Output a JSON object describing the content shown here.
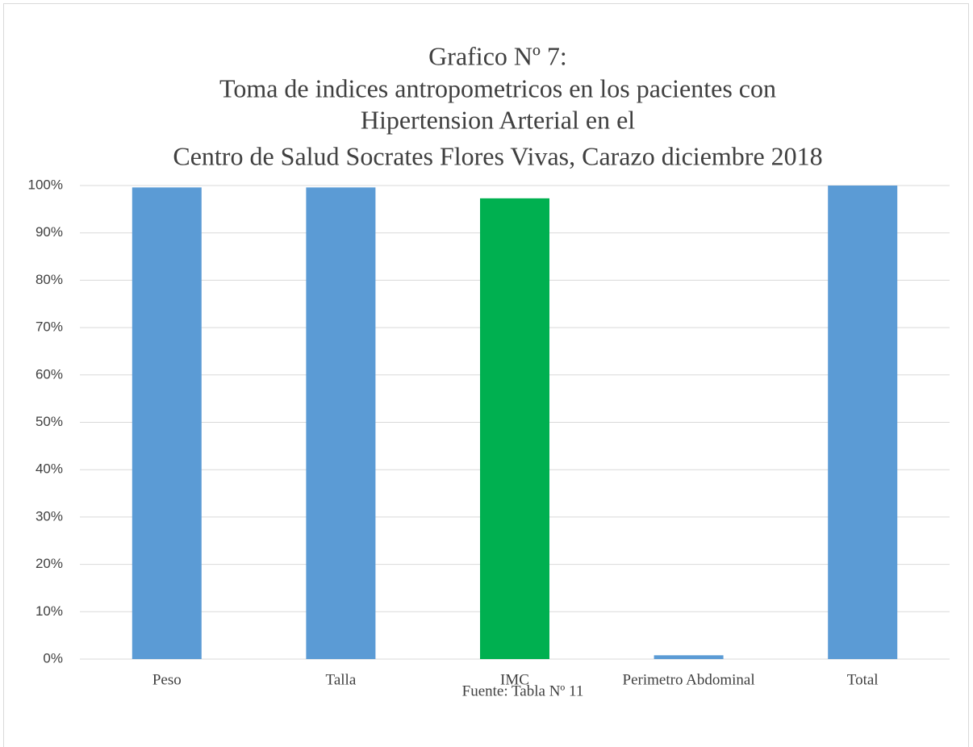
{
  "chart_data": {
    "type": "bar",
    "title": [
      "Grafico Nº 7:",
      "Toma de indices antropometricos en los pacientes con",
      "Hipertension Arterial en el",
      "Centro de Salud Socrates Flores Vivas, Carazo diciembre 2018"
    ],
    "source": "Fuente: Tabla Nº 11",
    "categories": [
      "Peso",
      "Talla",
      "IMC",
      "Perimetro Abdominal",
      "Total"
    ],
    "values": [
      99.6,
      99.6,
      97.3,
      0.8,
      100
    ],
    "colors": [
      "#5b9bd5",
      "#5b9bd5",
      "#00b050",
      "#5b9bd5",
      "#5b9bd5"
    ],
    "ylim": [
      0,
      100
    ],
    "yticks": [
      {
        "value": 0,
        "label": "0%"
      },
      {
        "value": 10,
        "label": "10%"
      },
      {
        "value": 20,
        "label": "20%"
      },
      {
        "value": 30,
        "label": "30%"
      },
      {
        "value": 40,
        "label": "40%"
      },
      {
        "value": 50,
        "label": "50%"
      },
      {
        "value": 60,
        "label": "60%"
      },
      {
        "value": 70,
        "label": "70%"
      },
      {
        "value": 80,
        "label": "80%"
      },
      {
        "value": 90,
        "label": "90%"
      },
      {
        "value": 100,
        "label": "100%"
      }
    ],
    "grid": true
  }
}
